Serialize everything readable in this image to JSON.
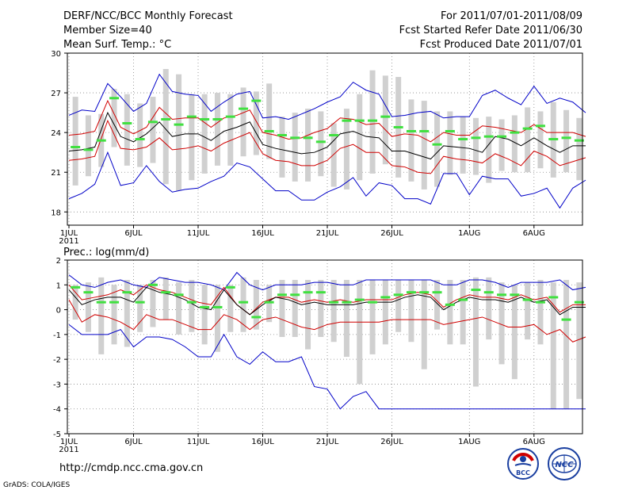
{
  "header": {
    "title": "DERF/NCC/BCC Monthly Forecast",
    "member_size": "Member Size=40",
    "variable1": "Mean Surf. Temp.: °C",
    "period": "For 2011/07/01-2011/08/09",
    "started": "Fcst Started Refer Date 2011/06/30",
    "produced": "Fcst Produced Date 2011/07/01"
  },
  "footer": {
    "url": "http://cmdp.ncc.cma.gov.cn",
    "grads": "GrADS: COLA/IGES",
    "logo1_text": "BCC",
    "logo2_text": "NCC"
  },
  "colors": {
    "box": "#d0d0d0",
    "mean": "#40e040",
    "envelope": "#0000c8",
    "spread": "#d00000",
    "median": "#000000",
    "grid": "#888888"
  },
  "chart_data": [
    {
      "type": "box-line",
      "title": "Mean Surf. Temp.: °C",
      "x_labels": [
        "1JUL",
        "6JUL",
        "11JUL",
        "16JUL",
        "21JUL",
        "26JUL",
        "1AUG",
        "6AUG"
      ],
      "x_label_days": [
        1,
        6,
        11,
        16,
        21,
        26,
        32,
        37
      ],
      "year_label": "2011",
      "days": 40,
      "ylim": [
        17,
        30
      ],
      "yticks": [
        18,
        21,
        24,
        27,
        30
      ],
      "series": {
        "box_top": [
          26.7,
          25.3,
          25.4,
          27.3,
          26.9,
          26.2,
          26.7,
          28.8,
          28.4,
          26.9,
          26.9,
          27.0,
          26.9,
          27.4,
          27.1,
          27.7,
          25.2,
          25.5,
          25.8,
          25.6,
          24.7,
          25.8,
          26.9,
          28.7,
          28.3,
          28.2,
          26.5,
          26.4,
          25.6,
          25.6,
          25.2,
          25.1,
          25.2,
          25.0,
          25.3,
          25.9,
          25.6,
          26.3,
          25.7,
          25.1
        ],
        "box_bottom": [
          20.0,
          20.7,
          21.4,
          22.9,
          21.5,
          21.4,
          21.7,
          20.1,
          19.6,
          20.4,
          20.9,
          21.5,
          21.5,
          22.2,
          22.3,
          22.0,
          20.6,
          20.3,
          20.3,
          20.7,
          19.9,
          19.7,
          20.4,
          20.9,
          21.6,
          20.6,
          20.3,
          19.7,
          19.9,
          20.8,
          20.9,
          20.8,
          20.2,
          21.1,
          21.0,
          21.0,
          21.3,
          20.6,
          21.0,
          20.4
        ],
        "mean_marks": [
          22.9,
          22.7,
          23.4,
          26.6,
          24.7,
          23.5,
          24.8,
          25.0,
          24.6,
          25.2,
          25.0,
          25.0,
          25.2,
          25.8,
          26.4,
          24.1,
          23.8,
          23.6,
          23.6,
          23.3,
          23.8,
          24.9,
          24.9,
          24.9,
          25.2,
          24.4,
          24.1,
          24.1,
          23.1,
          24.1,
          23.5,
          23.6,
          23.7,
          23.7,
          24.0,
          24.3,
          24.5,
          23.5,
          23.6,
          23.4
        ],
        "envelope_max": [
          25.3,
          25.7,
          25.6,
          27.7,
          26.7,
          25.6,
          26.2,
          28.4,
          27.1,
          26.9,
          26.8,
          25.6,
          26.3,
          26.9,
          27.1,
          25.1,
          25.2,
          25.0,
          25.4,
          25.8,
          26.3,
          26.7,
          27.8,
          27.2,
          26.9,
          25.2,
          25.3,
          25.5,
          25.6,
          25.1,
          25.2,
          25.2,
          26.8,
          27.2,
          26.6,
          26.1,
          27.5,
          26.2,
          26.6,
          26.3,
          25.5
        ],
        "envelope_min": [
          19.0,
          19.4,
          20.1,
          22.5,
          20.0,
          20.2,
          21.5,
          20.3,
          19.5,
          19.7,
          19.8,
          20.3,
          20.7,
          21.7,
          21.4,
          20.5,
          19.6,
          19.6,
          18.9,
          18.9,
          19.5,
          19.9,
          20.6,
          19.2,
          20.2,
          20.0,
          19.0,
          19.0,
          18.6,
          20.9,
          20.9,
          19.3,
          20.7,
          20.5,
          20.5,
          19.2,
          19.4,
          19.8,
          18.3,
          19.8,
          20.4
        ],
        "spread_high": [
          23.8,
          23.9,
          24.1,
          26.4,
          24.4,
          23.9,
          24.4,
          25.9,
          25.0,
          25.1,
          25.1,
          24.4,
          25.1,
          25.3,
          25.7,
          24.0,
          23.8,
          23.5,
          23.6,
          24.0,
          24.3,
          25.1,
          25.0,
          24.6,
          24.7,
          23.7,
          23.9,
          23.8,
          23.3,
          24.0,
          23.8,
          23.8,
          24.5,
          24.4,
          24.2,
          24.0,
          24.6,
          24.0,
          24.0,
          24.0,
          23.7
        ],
        "median_line": [
          22.6,
          22.7,
          22.9,
          25.5,
          23.7,
          23.3,
          23.9,
          24.8,
          23.7,
          23.9,
          23.9,
          23.4,
          24.1,
          24.4,
          24.8,
          23.1,
          22.8,
          22.6,
          22.4,
          22.5,
          22.9,
          23.9,
          24.1,
          23.7,
          23.6,
          22.6,
          22.6,
          22.3,
          22.0,
          23.0,
          22.9,
          22.8,
          22.5,
          23.7,
          23.5,
          23.0,
          23.6,
          23.0,
          22.5,
          23.0,
          23.0
        ],
        "spread_low": [
          21.9,
          22.0,
          22.2,
          24.9,
          22.8,
          22.7,
          22.9,
          23.6,
          22.7,
          22.8,
          23.0,
          22.6,
          23.2,
          23.6,
          24.0,
          22.4,
          21.9,
          21.8,
          21.5,
          21.5,
          21.9,
          22.8,
          23.1,
          22.5,
          22.5,
          21.5,
          21.4,
          21.0,
          20.9,
          22.2,
          22.0,
          21.9,
          21.7,
          22.4,
          22.0,
          21.5,
          22.6,
          22.2,
          21.5,
          21.8,
          22.1
        ]
      }
    },
    {
      "type": "box-line",
      "title": "Prec.: log(mm/d)",
      "x_labels": [
        "1JUL",
        "6JUL",
        "11JUL",
        "16JUL",
        "21JUL",
        "26JUL",
        "1AUG",
        "6AUG"
      ],
      "x_label_days": [
        1,
        6,
        11,
        16,
        21,
        26,
        32,
        37
      ],
      "year_label": "2011",
      "days": 40,
      "ylim": [
        -5,
        2
      ],
      "yticks": [
        -5,
        -4,
        -3,
        -2,
        -1,
        0,
        1,
        2
      ],
      "series": {
        "box_top": [
          1.0,
          1.1,
          1.3,
          1.0,
          1.2,
          1.0,
          1.2,
          1.3,
          1.1,
          1.2,
          1.0,
          1.0,
          1.0,
          1.3,
          1.2,
          1.0,
          1.2,
          1.2,
          1.2,
          1.2,
          1.2,
          1.2,
          1.2,
          1.2,
          1.2,
          1.2,
          1.2,
          1.2,
          1.2,
          1.2,
          1.2,
          1.3,
          1.3,
          1.1,
          1.0,
          1.1,
          1.2,
          1.1,
          1.2,
          1.1
        ],
        "box_bottom": [
          -0.4,
          -0.9,
          -1.8,
          -1.4,
          -1.5,
          -0.9,
          -0.7,
          -0.4,
          -1.0,
          -0.9,
          -1.4,
          -1.7,
          -0.9,
          -0.9,
          -0.8,
          -0.5,
          -1.1,
          -1.1,
          -1.6,
          -1.1,
          -1.3,
          -1.9,
          -3.0,
          -1.8,
          -1.4,
          -0.9,
          -1.3,
          -2.4,
          -0.8,
          -1.4,
          -1.4,
          -3.1,
          -1.2,
          -2.2,
          -2.8,
          -1.2,
          -1.4,
          -4.0,
          -4.0,
          -3.6
        ],
        "mean_marks": [
          0.9,
          0.7,
          0.3,
          0.3,
          0.7,
          0.3,
          1.0,
          0.7,
          0.6,
          0.3,
          0.1,
          0.1,
          0.9,
          0.3,
          -0.3,
          0.3,
          0.6,
          0.6,
          0.7,
          0.7,
          0.3,
          0.3,
          0.4,
          0.3,
          0.5,
          0.6,
          0.7,
          0.7,
          0.7,
          0.2,
          0.4,
          0.8,
          0.7,
          0.6,
          0.6,
          0.4,
          0.3,
          0.5,
          -0.4,
          0.3
        ],
        "envelope_max": [
          1.4,
          1.0,
          0.9,
          1.1,
          1.2,
          1.0,
          0.9,
          1.3,
          1.2,
          1.1,
          1.1,
          1.0,
          0.8,
          1.5,
          1.0,
          0.8,
          1.0,
          1.0,
          1.0,
          1.1,
          1.1,
          1.0,
          1.0,
          1.2,
          1.2,
          1.2,
          1.2,
          1.2,
          1.2,
          1.0,
          1.0,
          1.2,
          1.2,
          1.1,
          0.9,
          1.1,
          1.1,
          1.1,
          1.2,
          0.8,
          0.9
        ],
        "envelope_min": [
          -0.6,
          -1.0,
          -1.0,
          -1.0,
          -0.8,
          -1.5,
          -1.1,
          -1.1,
          -1.2,
          -1.5,
          -1.9,
          -1.9,
          -1.0,
          -1.9,
          -2.2,
          -1.7,
          -2.1,
          -2.1,
          -1.9,
          -3.1,
          -3.2,
          -4.0,
          -3.5,
          -3.3,
          -4.0,
          -4.0,
          -4.0,
          -4.0,
          -4.0,
          -4.0,
          -4.0,
          -4.0,
          -4.0,
          -4.0,
          -4.0,
          -4.0,
          -4.0,
          -4.0,
          -4.0,
          -4.0,
          -4.0
        ],
        "spread_high": [
          1.0,
          0.4,
          0.5,
          0.6,
          0.8,
          0.6,
          1.0,
          0.8,
          0.7,
          0.5,
          0.3,
          0.2,
          0.9,
          0.2,
          -0.2,
          0.3,
          0.5,
          0.5,
          0.3,
          0.4,
          0.3,
          0.4,
          0.3,
          0.4,
          0.4,
          0.4,
          0.6,
          0.7,
          0.6,
          0.1,
          0.4,
          0.6,
          0.5,
          0.5,
          0.4,
          0.6,
          0.4,
          0.5,
          -0.1,
          0.2,
          0.2
        ],
        "median_line": [
          0.8,
          0.2,
          0.4,
          0.5,
          0.5,
          0.3,
          0.9,
          0.7,
          0.6,
          0.4,
          0.1,
          0.0,
          0.8,
          0.2,
          -0.2,
          0.2,
          0.5,
          0.4,
          0.2,
          0.3,
          0.2,
          0.2,
          0.2,
          0.3,
          0.3,
          0.3,
          0.5,
          0.6,
          0.5,
          0.0,
          0.3,
          0.5,
          0.4,
          0.4,
          0.3,
          0.5,
          0.3,
          0.4,
          -0.2,
          0.1,
          0.1
        ],
        "spread_low": [
          0.4,
          -0.5,
          -0.2,
          -0.3,
          -0.5,
          -0.8,
          -0.2,
          -0.4,
          -0.4,
          -0.6,
          -0.8,
          -0.8,
          -0.2,
          -0.4,
          -0.8,
          -0.4,
          -0.3,
          -0.5,
          -0.7,
          -0.8,
          -0.6,
          -0.5,
          -0.5,
          -0.5,
          -0.5,
          -0.4,
          -0.4,
          -0.4,
          -0.4,
          -0.6,
          -0.5,
          -0.4,
          -0.3,
          -0.5,
          -0.7,
          -0.7,
          -0.6,
          -1.0,
          -0.8,
          -1.3,
          -1.1
        ]
      }
    }
  ]
}
